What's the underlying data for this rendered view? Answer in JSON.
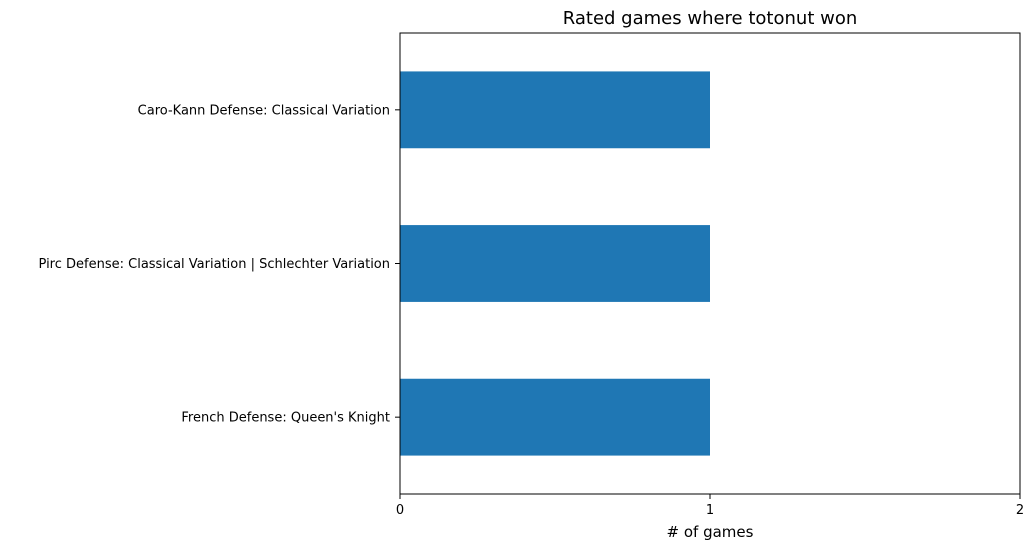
{
  "chart_data": {
    "type": "bar",
    "orientation": "horizontal",
    "title": "Rated games where totonut won",
    "xlabel": "# of games",
    "ylabel": "",
    "categories": [
      "Caro-Kann Defense: Classical Variation",
      "Pirc Defense: Classical Variation |  Schlechter Variation",
      "French Defense: Queen's Knight"
    ],
    "values": [
      1,
      1,
      1
    ],
    "xlim": [
      0,
      2
    ],
    "xticks": [
      "0",
      "1",
      "2"
    ],
    "grid": false,
    "legend": "none",
    "bar_color": "#1f77b4"
  }
}
